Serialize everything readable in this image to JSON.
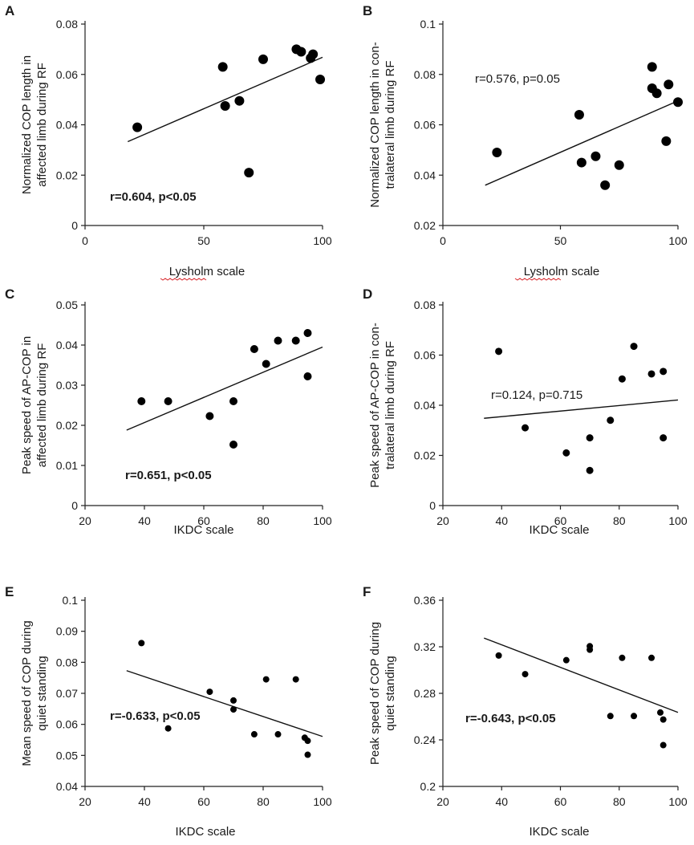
{
  "chart_data": [
    {
      "panel": "A",
      "type": "scatter",
      "xlim": [
        0,
        100
      ],
      "ylim": [
        0,
        0.08
      ],
      "xticks": [
        0,
        50,
        100
      ],
      "yticks": [
        0,
        0.02,
        0.04,
        0.06,
        0.08
      ],
      "ytick_labels": [
        "0",
        "0.02",
        "0.04",
        "0.06",
        "0.08"
      ],
      "xlabel": "Lysholm scale",
      "ylabel_lines": [
        "Normalized COP length in",
        "affected limb during RF"
      ],
      "annotation": "r=0.604, p<0.05",
      "annotation_bold": true,
      "x": [
        22,
        58,
        59,
        65,
        69,
        75,
        89,
        91,
        95,
        96,
        99
      ],
      "y": [
        0.039,
        0.063,
        0.0475,
        0.0495,
        0.021,
        0.066,
        0.07,
        0.069,
        0.0665,
        0.068,
        0.058
      ],
      "marker_size": 6,
      "fit": {
        "x1": 18,
        "y1": 0.0333,
        "x2": 100,
        "y2": 0.0668
      }
    },
    {
      "panel": "B",
      "type": "scatter",
      "xlim": [
        0,
        100
      ],
      "ylim": [
        0.02,
        0.1
      ],
      "xticks": [
        0,
        50,
        100
      ],
      "yticks": [
        0.02,
        0.04,
        0.06,
        0.08,
        0.1
      ],
      "ytick_labels": [
        "0.02",
        "0.04",
        "0.06",
        "0.08",
        "0.1"
      ],
      "xlabel": "Lysholm scale",
      "ylabel_lines": [
        "Normalized COP length in con-",
        "tralateral limb during RF"
      ],
      "annotation": "r=0.576, p=0.05",
      "annotation_bold": false,
      "x": [
        23,
        58,
        59,
        65,
        69,
        75,
        89,
        89,
        91,
        95,
        96,
        100
      ],
      "y": [
        0.049,
        0.064,
        0.045,
        0.0475,
        0.036,
        0.044,
        0.083,
        0.0745,
        0.0725,
        0.0535,
        0.076,
        0.069
      ],
      "marker_size": 6,
      "fit": {
        "x1": 18,
        "y1": 0.036,
        "x2": 100,
        "y2": 0.0695
      }
    },
    {
      "panel": "C",
      "type": "scatter",
      "xlim": [
        20,
        100
      ],
      "ylim": [
        0,
        0.05
      ],
      "xticks": [
        20,
        40,
        60,
        80,
        100
      ],
      "yticks": [
        0,
        0.01,
        0.02,
        0.03,
        0.04,
        0.05
      ],
      "ytick_labels": [
        "0",
        "0.01",
        "0.02",
        "0.03",
        "0.04",
        "0.05"
      ],
      "xlabel": "IKDC scale",
      "ylabel_lines": [
        "Peak speed of AP-COP  in",
        "affected limb during RF"
      ],
      "annotation": "r=0.651, p<0.05",
      "annotation_bold": true,
      "x": [
        39,
        48,
        62,
        70,
        70,
        77,
        81,
        85,
        91,
        95,
        95
      ],
      "y": [
        0.026,
        0.026,
        0.0223,
        0.026,
        0.0152,
        0.039,
        0.0353,
        0.0411,
        0.0411,
        0.043,
        0.0322
      ],
      "marker_size": 5,
      "fit": {
        "x1": 34,
        "y1": 0.0188,
        "x2": 100,
        "y2": 0.0395
      }
    },
    {
      "panel": "D",
      "type": "scatter",
      "xlim": [
        20,
        100
      ],
      "ylim": [
        0,
        0.08
      ],
      "xticks": [
        20,
        40,
        60,
        80,
        100
      ],
      "yticks": [
        0,
        0.02,
        0.04,
        0.06,
        0.08
      ],
      "ytick_labels": [
        "0",
        "0.02",
        "0.04",
        "0.06",
        "0.08"
      ],
      "xlabel": "IKDC scale",
      "ylabel_lines": [
        "Peak speed of AP-COP  in con-",
        "tralateral limb during RF"
      ],
      "annotation": "r=0.124, p=0.715",
      "annotation_bold": false,
      "x": [
        39,
        48,
        62,
        70,
        70,
        77,
        81,
        85,
        91,
        95,
        95
      ],
      "y": [
        0.0615,
        0.031,
        0.021,
        0.027,
        0.014,
        0.034,
        0.0505,
        0.0635,
        0.0525,
        0.0535,
        0.027
      ],
      "marker_size": 4.5,
      "fit": {
        "x1": 34,
        "y1": 0.0348,
        "x2": 100,
        "y2": 0.0421
      }
    },
    {
      "panel": "E",
      "type": "scatter",
      "xlim": [
        20,
        100
      ],
      "ylim": [
        0.04,
        0.1
      ],
      "xticks": [
        20,
        40,
        60,
        80,
        100
      ],
      "yticks": [
        0.04,
        0.05,
        0.06,
        0.07,
        0.08,
        0.09,
        0.1
      ],
      "ytick_labels": [
        "0.04",
        "0.05",
        "0.06",
        "0.07",
        "0.08",
        "0.09",
        "0.1"
      ],
      "xlabel": "IKDC scale",
      "ylabel_lines": [
        "Mean speed of COP during",
        "quiet standing"
      ],
      "annotation": "r=-0.633, p<0.05",
      "annotation_bold": true,
      "x": [
        39,
        48,
        62,
        70,
        70,
        77,
        81,
        85,
        91,
        94,
        95,
        95
      ],
      "y": [
        0.0862,
        0.0587,
        0.0705,
        0.0677,
        0.0648,
        0.0568,
        0.0745,
        0.0568,
        0.0745,
        0.0557,
        0.0547,
        0.0502
      ],
      "marker_size": 4,
      "fit": {
        "x1": 34,
        "y1": 0.0773,
        "x2": 100,
        "y2": 0.0561
      }
    },
    {
      "panel": "F",
      "type": "scatter",
      "xlim": [
        20,
        100
      ],
      "ylim": [
        0.2,
        0.36
      ],
      "xticks": [
        20,
        40,
        60,
        80,
        100
      ],
      "yticks": [
        0.2,
        0.24,
        0.28,
        0.32,
        0.36
      ],
      "ytick_labels": [
        "0.2",
        "0.24",
        "0.28",
        "0.32",
        "0.36"
      ],
      "xlabel": "IKDC scale",
      "ylabel_lines": [
        "Peak speed of COP during",
        "quiet standing"
      ],
      "annotation": "r=-0.643, p<0.05",
      "annotation_bold": true,
      "x": [
        39,
        48,
        62,
        70,
        70,
        77,
        81,
        85,
        91,
        94,
        95,
        95
      ],
      "y": [
        0.3125,
        0.2965,
        0.3085,
        0.3205,
        0.3175,
        0.2605,
        0.3105,
        0.2605,
        0.3105,
        0.2635,
        0.2575,
        0.2355
      ],
      "marker_size": 4,
      "fit": {
        "x1": 34,
        "y1": 0.3275,
        "x2": 100,
        "y2": 0.2636
      }
    }
  ]
}
